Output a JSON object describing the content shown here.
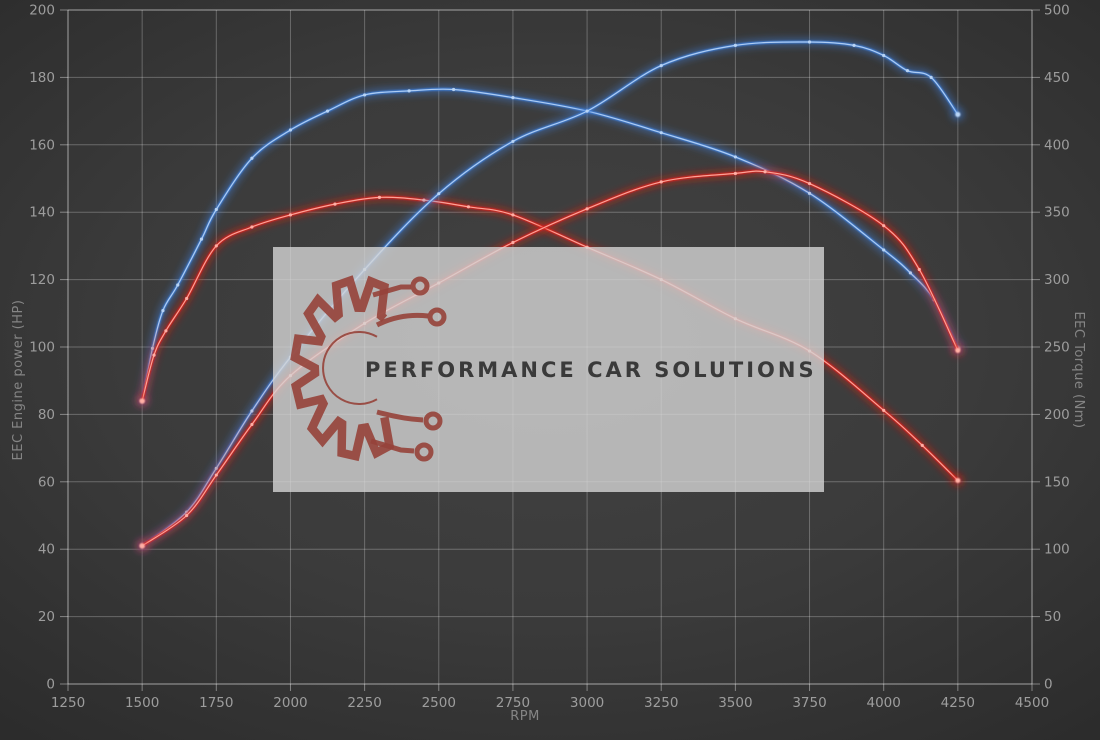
{
  "chart_data": {
    "type": "line",
    "title": "",
    "grid": true,
    "legend": "none",
    "x_axis": {
      "label": "RPM",
      "min": 1250,
      "max": 4500,
      "tick_step": 250,
      "ticks": [
        1250,
        1500,
        1750,
        2000,
        2250,
        2500,
        2750,
        3000,
        3250,
        3500,
        3750,
        4000,
        4250,
        4500
      ]
    },
    "left_axis": {
      "label": "EEC Engine power (HP)",
      "min": 0,
      "max": 200,
      "tick_step": 20,
      "ticks": [
        0,
        20,
        40,
        60,
        80,
        100,
        120,
        140,
        160,
        180,
        200
      ]
    },
    "right_axis": {
      "label": "EEC Torque (Nm)",
      "min": 0,
      "max": 500,
      "tick_step": 50,
      "ticks": [
        0,
        50,
        100,
        150,
        200,
        250,
        300,
        350,
        400,
        450,
        500
      ]
    },
    "series": [
      {
        "name": "blue_torque",
        "axis": "right",
        "unit": "Nm",
        "color": "#3e7ed8",
        "core": "#b9d5f6",
        "points": [
          [
            1500,
            210
          ],
          [
            1535,
            249
          ],
          [
            1570,
            277
          ],
          [
            1620,
            296
          ],
          [
            1700,
            330
          ],
          [
            1750,
            352
          ],
          [
            1870,
            390
          ],
          [
            2000,
            411
          ],
          [
            2125,
            425
          ],
          [
            2250,
            437
          ],
          [
            2400,
            440
          ],
          [
            2550,
            441
          ],
          [
            2750,
            435
          ],
          [
            3000,
            425
          ],
          [
            3250,
            409
          ],
          [
            3500,
            391
          ],
          [
            3750,
            364
          ],
          [
            4000,
            322
          ],
          [
            4090,
            305
          ],
          [
            4170,
            285
          ],
          [
            4250,
            249
          ]
        ]
      },
      {
        "name": "red_torque",
        "axis": "right",
        "unit": "Nm",
        "color": "#dc2014",
        "core": "#ffb0a6",
        "points": [
          [
            1500,
            210
          ],
          [
            1540,
            244
          ],
          [
            1580,
            262
          ],
          [
            1650,
            286
          ],
          [
            1750,
            325
          ],
          [
            1870,
            339
          ],
          [
            2000,
            348
          ],
          [
            2150,
            356
          ],
          [
            2300,
            361
          ],
          [
            2450,
            359
          ],
          [
            2600,
            354
          ],
          [
            2750,
            348
          ],
          [
            3000,
            324
          ],
          [
            3250,
            300
          ],
          [
            3500,
            271
          ],
          [
            3750,
            247
          ],
          [
            4000,
            203
          ],
          [
            4130,
            177
          ],
          [
            4250,
            151
          ]
        ]
      },
      {
        "name": "blue_power",
        "axis": "left",
        "unit": "HP",
        "color": "#3e7ed8",
        "core": "#b9d5f6",
        "points": [
          [
            1500,
            41
          ],
          [
            1650,
            51
          ],
          [
            1750,
            64
          ],
          [
            1870,
            81
          ],
          [
            2000,
            97
          ],
          [
            2250,
            123
          ],
          [
            2500,
            145.5
          ],
          [
            2750,
            161
          ],
          [
            3000,
            170
          ],
          [
            3250,
            183.5
          ],
          [
            3500,
            189.5
          ],
          [
            3750,
            190.5
          ],
          [
            3900,
            189.5
          ],
          [
            4000,
            186.5
          ],
          [
            4080,
            182
          ],
          [
            4160,
            180
          ],
          [
            4250,
            169
          ]
        ]
      },
      {
        "name": "red_power",
        "axis": "left",
        "unit": "HP",
        "color": "#dc2014",
        "core": "#ffb0a6",
        "points": [
          [
            1500,
            41
          ],
          [
            1650,
            50
          ],
          [
            1750,
            62
          ],
          [
            1870,
            77
          ],
          [
            2000,
            91.5
          ],
          [
            2250,
            107
          ],
          [
            2500,
            119
          ],
          [
            2750,
            131
          ],
          [
            3000,
            141
          ],
          [
            3250,
            149
          ],
          [
            3500,
            151.5
          ],
          [
            3600,
            152
          ],
          [
            3750,
            148.5
          ],
          [
            4000,
            136
          ],
          [
            4120,
            123
          ],
          [
            4250,
            99
          ]
        ]
      }
    ],
    "theme": {
      "grid": "rgba(255,255,255,0.26)",
      "frame": "rgba(255,255,255,0.40)",
      "tick_text": "#9d9d9d",
      "axis_title": "#858585",
      "background_center": "#424242",
      "background_edge": "#2c2c2c"
    }
  },
  "watermark": {
    "text": "PERFORMANCE CAR SOLUTIONS",
    "gear_color": "#96423a",
    "text_color": "#3a3a3a",
    "box_color": "rgba(212,212,212,0.8)"
  }
}
